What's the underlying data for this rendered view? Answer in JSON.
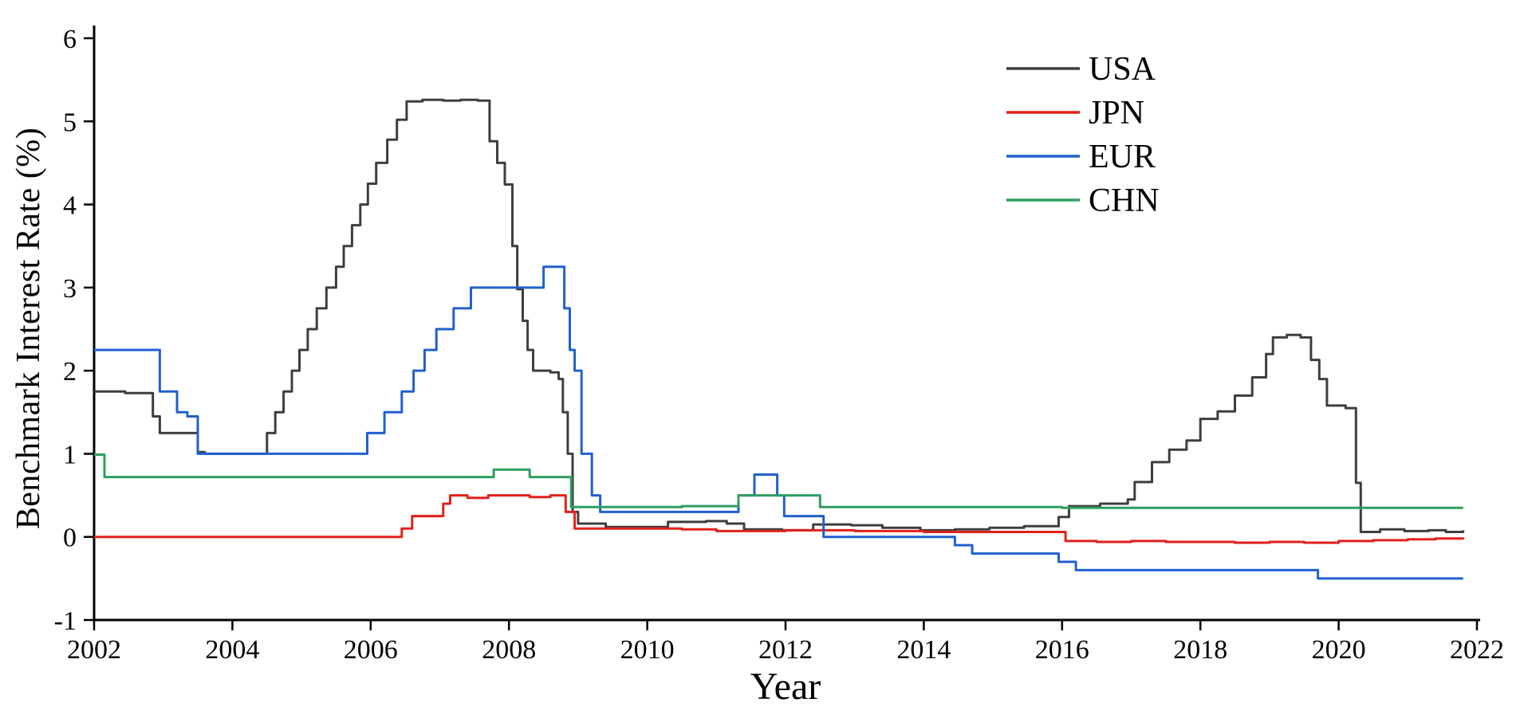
{
  "figure": {
    "background": "#ffffff",
    "axis_color": "#000000"
  },
  "chart_data": {
    "type": "line",
    "title": "",
    "xlabel": "Year",
    "ylabel": "Benchmark Interest Rate (%)",
    "xlim": [
      2002,
      2022
    ],
    "ylim": [
      -1,
      6
    ],
    "x_ticks": [
      2002,
      2004,
      2006,
      2008,
      2010,
      2012,
      2014,
      2016,
      2018,
      2020,
      2022
    ],
    "y_ticks": [
      -1,
      0,
      1,
      2,
      3,
      4,
      5,
      6
    ],
    "grid": false,
    "interpolation": "step-after",
    "legend": {
      "position": "top-right",
      "entries": [
        "USA",
        "JPN",
        "EUR",
        "CHN"
      ]
    },
    "series": [
      {
        "name": "USA",
        "color": "#3e3e3e",
        "points": [
          [
            2002.0,
            1.75
          ],
          [
            2002.45,
            1.73
          ],
          [
            2002.85,
            1.45
          ],
          [
            2002.95,
            1.25
          ],
          [
            2003.5,
            1.02
          ],
          [
            2003.6,
            1.0
          ],
          [
            2004.5,
            1.25
          ],
          [
            2004.62,
            1.5
          ],
          [
            2004.74,
            1.75
          ],
          [
            2004.86,
            2.0
          ],
          [
            2004.97,
            2.25
          ],
          [
            2005.09,
            2.5
          ],
          [
            2005.22,
            2.75
          ],
          [
            2005.36,
            3.0
          ],
          [
            2005.5,
            3.25
          ],
          [
            2005.61,
            3.5
          ],
          [
            2005.73,
            3.75
          ],
          [
            2005.85,
            4.0
          ],
          [
            2005.96,
            4.25
          ],
          [
            2006.08,
            4.5
          ],
          [
            2006.24,
            4.78
          ],
          [
            2006.38,
            5.02
          ],
          [
            2006.52,
            5.24
          ],
          [
            2006.75,
            5.26
          ],
          [
            2007.05,
            5.25
          ],
          [
            2007.3,
            5.26
          ],
          [
            2007.55,
            5.25
          ],
          [
            2007.72,
            4.76
          ],
          [
            2007.83,
            4.5
          ],
          [
            2007.94,
            4.24
          ],
          [
            2008.05,
            3.5
          ],
          [
            2008.12,
            2.98
          ],
          [
            2008.2,
            2.6
          ],
          [
            2008.27,
            2.25
          ],
          [
            2008.35,
            2.0
          ],
          [
            2008.6,
            1.98
          ],
          [
            2008.72,
            1.9
          ],
          [
            2008.78,
            1.5
          ],
          [
            2008.85,
            1.0
          ],
          [
            2008.92,
            0.3
          ],
          [
            2009.0,
            0.16
          ],
          [
            2009.4,
            0.12
          ],
          [
            2009.9,
            0.12
          ],
          [
            2010.3,
            0.18
          ],
          [
            2010.85,
            0.19
          ],
          [
            2011.15,
            0.16
          ],
          [
            2011.4,
            0.09
          ],
          [
            2011.95,
            0.08
          ],
          [
            2012.4,
            0.15
          ],
          [
            2012.95,
            0.14
          ],
          [
            2013.4,
            0.11
          ],
          [
            2013.95,
            0.08
          ],
          [
            2014.45,
            0.09
          ],
          [
            2014.95,
            0.11
          ],
          [
            2015.45,
            0.13
          ],
          [
            2015.95,
            0.24
          ],
          [
            2016.1,
            0.37
          ],
          [
            2016.55,
            0.4
          ],
          [
            2016.95,
            0.45
          ],
          [
            2017.05,
            0.66
          ],
          [
            2017.3,
            0.9
          ],
          [
            2017.55,
            1.05
          ],
          [
            2017.8,
            1.16
          ],
          [
            2018.0,
            1.42
          ],
          [
            2018.25,
            1.51
          ],
          [
            2018.5,
            1.7
          ],
          [
            2018.75,
            1.92
          ],
          [
            2018.95,
            2.2
          ],
          [
            2019.05,
            2.4
          ],
          [
            2019.25,
            2.43
          ],
          [
            2019.45,
            2.4
          ],
          [
            2019.6,
            2.13
          ],
          [
            2019.72,
            1.9
          ],
          [
            2019.83,
            1.58
          ],
          [
            2020.1,
            1.55
          ],
          [
            2020.25,
            0.65
          ],
          [
            2020.32,
            0.06
          ],
          [
            2020.6,
            0.09
          ],
          [
            2020.95,
            0.07
          ],
          [
            2021.3,
            0.08
          ],
          [
            2021.55,
            0.06
          ],
          [
            2021.8,
            0.08
          ]
        ]
      },
      {
        "name": "JPN",
        "color": "#e32119",
        "points": [
          [
            2002.0,
            0.0
          ],
          [
            2003.0,
            0.0
          ],
          [
            2004.0,
            0.0
          ],
          [
            2005.0,
            0.0
          ],
          [
            2006.0,
            0.0
          ],
          [
            2006.45,
            0.1
          ],
          [
            2006.6,
            0.25
          ],
          [
            2007.05,
            0.4
          ],
          [
            2007.15,
            0.5
          ],
          [
            2007.4,
            0.47
          ],
          [
            2007.7,
            0.5
          ],
          [
            2008.0,
            0.5
          ],
          [
            2008.3,
            0.48
          ],
          [
            2008.6,
            0.5
          ],
          [
            2008.82,
            0.3
          ],
          [
            2008.95,
            0.1
          ],
          [
            2009.5,
            0.1
          ],
          [
            2010.5,
            0.09
          ],
          [
            2011.0,
            0.07
          ],
          [
            2011.5,
            0.07
          ],
          [
            2012.0,
            0.08
          ],
          [
            2012.5,
            0.08
          ],
          [
            2013.0,
            0.07
          ],
          [
            2013.5,
            0.07
          ],
          [
            2014.0,
            0.06
          ],
          [
            2014.5,
            0.06
          ],
          [
            2015.0,
            0.06
          ],
          [
            2015.5,
            0.06
          ],
          [
            2016.05,
            -0.05
          ],
          [
            2016.5,
            -0.06
          ],
          [
            2017.0,
            -0.05
          ],
          [
            2017.5,
            -0.06
          ],
          [
            2018.0,
            -0.06
          ],
          [
            2018.5,
            -0.07
          ],
          [
            2019.0,
            -0.06
          ],
          [
            2019.5,
            -0.07
          ],
          [
            2020.0,
            -0.05
          ],
          [
            2020.5,
            -0.04
          ],
          [
            2021.0,
            -0.03
          ],
          [
            2021.4,
            -0.02
          ],
          [
            2021.8,
            -0.03
          ]
        ]
      },
      {
        "name": "EUR",
        "color": "#2160cf",
        "points": [
          [
            2002.0,
            2.25
          ],
          [
            2002.95,
            1.75
          ],
          [
            2003.2,
            1.5
          ],
          [
            2003.35,
            1.45
          ],
          [
            2003.5,
            1.0
          ],
          [
            2004.5,
            1.0
          ],
          [
            2005.5,
            1.0
          ],
          [
            2005.95,
            1.25
          ],
          [
            2006.2,
            1.5
          ],
          [
            2006.45,
            1.75
          ],
          [
            2006.62,
            2.0
          ],
          [
            2006.78,
            2.25
          ],
          [
            2006.95,
            2.5
          ],
          [
            2007.2,
            2.75
          ],
          [
            2007.45,
            3.0
          ],
          [
            2008.0,
            3.0
          ],
          [
            2008.5,
            3.25
          ],
          [
            2008.8,
            2.75
          ],
          [
            2008.88,
            2.25
          ],
          [
            2008.95,
            2.0
          ],
          [
            2009.05,
            1.0
          ],
          [
            2009.2,
            0.5
          ],
          [
            2009.32,
            0.3
          ],
          [
            2010.0,
            0.3
          ],
          [
            2011.0,
            0.3
          ],
          [
            2011.32,
            0.5
          ],
          [
            2011.55,
            0.75
          ],
          [
            2011.88,
            0.5
          ],
          [
            2011.98,
            0.25
          ],
          [
            2012.55,
            0.0
          ],
          [
            2013.5,
            0.0
          ],
          [
            2014.45,
            -0.1
          ],
          [
            2014.7,
            -0.2
          ],
          [
            2015.95,
            -0.3
          ],
          [
            2016.2,
            -0.4
          ],
          [
            2017.0,
            -0.4
          ],
          [
            2018.0,
            -0.4
          ],
          [
            2019.7,
            -0.5
          ],
          [
            2021.8,
            -0.5
          ]
        ]
      },
      {
        "name": "CHN",
        "color": "#2f9e5f",
        "points": [
          [
            2002.0,
            0.99
          ],
          [
            2002.15,
            0.72
          ],
          [
            2003.0,
            0.72
          ],
          [
            2004.0,
            0.72
          ],
          [
            2005.0,
            0.72
          ],
          [
            2006.0,
            0.72
          ],
          [
            2007.0,
            0.72
          ],
          [
            2007.78,
            0.81
          ],
          [
            2008.3,
            0.72
          ],
          [
            2008.9,
            0.36
          ],
          [
            2009.5,
            0.36
          ],
          [
            2010.5,
            0.37
          ],
          [
            2011.32,
            0.5
          ],
          [
            2012.5,
            0.36
          ],
          [
            2013.5,
            0.36
          ],
          [
            2014.5,
            0.36
          ],
          [
            2015.5,
            0.36
          ],
          [
            2016.0,
            0.35
          ],
          [
            2017.0,
            0.35
          ],
          [
            2018.0,
            0.35
          ],
          [
            2019.0,
            0.35
          ],
          [
            2020.0,
            0.35
          ],
          [
            2021.0,
            0.35
          ],
          [
            2021.8,
            0.35
          ]
        ]
      }
    ]
  }
}
